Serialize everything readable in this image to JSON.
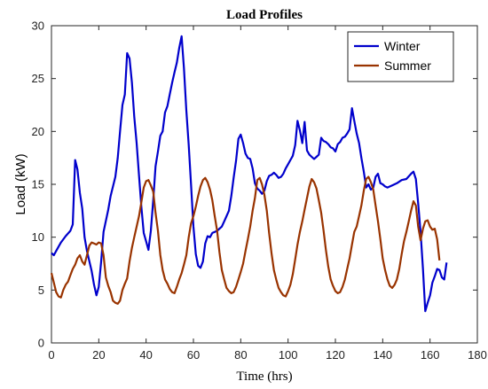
{
  "chart_data": {
    "type": "line",
    "title": "Load Profiles",
    "xlabel": "Time (hrs)",
    "ylabel": "Load (kW)",
    "xlim": [
      0,
      180
    ],
    "ylim": [
      0,
      30
    ],
    "xticks": [
      0,
      20,
      40,
      60,
      80,
      100,
      120,
      140,
      160,
      180
    ],
    "yticks": [
      0,
      5,
      10,
      15,
      20,
      25,
      30
    ],
    "grid": false,
    "legend_position": "top-right",
    "series": [
      {
        "name": "Winter",
        "color": "#0000cc",
        "points": [
          [
            0,
            8.5
          ],
          [
            1,
            8.3
          ],
          [
            2,
            8.7
          ],
          [
            4,
            9.5
          ],
          [
            6,
            10.1
          ],
          [
            8,
            10.6
          ],
          [
            9,
            11.2
          ],
          [
            10,
            17.3
          ],
          [
            11,
            16.4
          ],
          [
            12,
            14.2
          ],
          [
            13,
            12.7
          ],
          [
            14,
            10.0
          ],
          [
            15,
            8.7
          ],
          [
            17,
            6.8
          ],
          [
            18,
            5.5
          ],
          [
            19,
            4.5
          ],
          [
            20,
            5.3
          ],
          [
            21,
            7.7
          ],
          [
            22,
            10.5
          ],
          [
            24,
            12.6
          ],
          [
            25,
            13.9
          ],
          [
            27,
            15.7
          ],
          [
            28,
            17.5
          ],
          [
            29,
            20.0
          ],
          [
            30,
            22.5
          ],
          [
            31,
            23.5
          ],
          [
            32,
            27.4
          ],
          [
            33,
            26.9
          ],
          [
            34,
            24.6
          ],
          [
            35,
            21.4
          ],
          [
            36,
            18.9
          ],
          [
            37,
            15.8
          ],
          [
            38,
            12.9
          ],
          [
            39,
            10.4
          ],
          [
            40,
            9.6
          ],
          [
            41,
            8.8
          ],
          [
            42,
            10.6
          ],
          [
            43,
            13.5
          ],
          [
            44,
            16.7
          ],
          [
            45,
            18.1
          ],
          [
            46,
            19.6
          ],
          [
            47,
            20.0
          ],
          [
            48,
            21.8
          ],
          [
            49,
            22.4
          ],
          [
            50,
            23.5
          ],
          [
            51,
            24.6
          ],
          [
            52,
            25.6
          ],
          [
            53,
            26.5
          ],
          [
            54,
            27.9
          ],
          [
            55,
            29.0
          ],
          [
            56,
            26.0
          ],
          [
            57,
            22.0
          ],
          [
            58,
            18.7
          ],
          [
            59,
            15.0
          ],
          [
            60,
            11.0
          ],
          [
            61,
            8.4
          ],
          [
            62,
            7.3
          ],
          [
            63,
            7.1
          ],
          [
            64,
            7.7
          ],
          [
            65,
            9.4
          ],
          [
            66,
            10.1
          ],
          [
            67,
            10.0
          ],
          [
            68,
            10.4
          ],
          [
            69,
            10.5
          ],
          [
            70,
            10.6
          ],
          [
            72,
            11.0
          ],
          [
            73,
            11.5
          ],
          [
            75,
            12.5
          ],
          [
            76,
            13.9
          ],
          [
            77,
            15.6
          ],
          [
            78,
            17.2
          ],
          [
            79,
            19.3
          ],
          [
            80,
            19.7
          ],
          [
            81,
            18.9
          ],
          [
            82,
            17.9
          ],
          [
            83,
            17.5
          ],
          [
            84,
            17.4
          ],
          [
            85,
            16.5
          ],
          [
            86,
            15.1
          ],
          [
            87,
            14.6
          ],
          [
            88,
            14.4
          ],
          [
            89,
            14.1
          ],
          [
            90,
            14.4
          ],
          [
            91,
            15.3
          ],
          [
            92,
            15.8
          ],
          [
            93,
            15.9
          ],
          [
            94,
            16.1
          ],
          [
            95,
            15.9
          ],
          [
            96,
            15.6
          ],
          [
            97,
            15.7
          ],
          [
            98,
            16.0
          ],
          [
            99,
            16.5
          ],
          [
            100,
            16.9
          ],
          [
            101,
            17.3
          ],
          [
            102,
            17.7
          ],
          [
            103,
            18.7
          ],
          [
            104,
            21.0
          ],
          [
            105,
            20.1
          ],
          [
            106,
            18.9
          ],
          [
            107,
            20.9
          ],
          [
            108,
            18.2
          ],
          [
            109,
            17.8
          ],
          [
            110,
            17.6
          ],
          [
            111,
            17.4
          ],
          [
            112,
            17.6
          ],
          [
            113,
            17.8
          ],
          [
            114,
            19.4
          ],
          [
            115,
            19.1
          ],
          [
            116,
            19.0
          ],
          [
            117,
            18.8
          ],
          [
            118,
            18.5
          ],
          [
            119,
            18.4
          ],
          [
            120,
            18.1
          ],
          [
            121,
            18.8
          ],
          [
            122,
            19.0
          ],
          [
            123,
            19.4
          ],
          [
            124,
            19.5
          ],
          [
            125,
            19.8
          ],
          [
            126,
            20.2
          ],
          [
            127,
            22.2
          ],
          [
            128,
            21.0
          ],
          [
            129,
            19.8
          ],
          [
            130,
            18.9
          ],
          [
            131,
            17.5
          ],
          [
            132,
            16.2
          ],
          [
            133,
            14.7
          ],
          [
            134,
            15.0
          ],
          [
            135,
            14.5
          ],
          [
            136,
            14.7
          ],
          [
            137,
            15.7
          ],
          [
            138,
            16.0
          ],
          [
            139,
            15.1
          ],
          [
            140,
            15.0
          ],
          [
            141,
            14.8
          ],
          [
            142,
            14.7
          ],
          [
            144,
            14.9
          ],
          [
            146,
            15.1
          ],
          [
            148,
            15.4
          ],
          [
            150,
            15.5
          ],
          [
            152,
            16.0
          ],
          [
            153,
            16.2
          ],
          [
            154,
            15.5
          ],
          [
            155,
            13.2
          ],
          [
            156,
            10.5
          ],
          [
            157,
            7.0
          ],
          [
            158,
            3.0
          ],
          [
            159,
            3.8
          ],
          [
            160,
            4.5
          ],
          [
            161,
            5.7
          ],
          [
            162,
            6.3
          ],
          [
            163,
            7.0
          ],
          [
            164,
            6.9
          ],
          [
            165,
            6.2
          ],
          [
            166,
            6.0
          ],
          [
            167,
            7.6
          ]
        ]
      },
      {
        "name": "Summer",
        "color": "#993300",
        "points": [
          [
            0,
            6.6
          ],
          [
            1,
            5.7
          ],
          [
            2,
            4.8
          ],
          [
            3,
            4.4
          ],
          [
            4,
            4.3
          ],
          [
            5,
            5.0
          ],
          [
            6,
            5.5
          ],
          [
            7,
            5.8
          ],
          [
            8,
            6.4
          ],
          [
            9,
            7.0
          ],
          [
            10,
            7.4
          ],
          [
            11,
            8.0
          ],
          [
            12,
            8.3
          ],
          [
            13,
            7.7
          ],
          [
            14,
            7.4
          ],
          [
            15,
            8.3
          ],
          [
            16,
            9.2
          ],
          [
            17,
            9.5
          ],
          [
            18,
            9.4
          ],
          [
            19,
            9.3
          ],
          [
            20,
            9.5
          ],
          [
            21,
            9.4
          ],
          [
            22,
            8.3
          ],
          [
            23,
            6.2
          ],
          [
            24,
            5.4
          ],
          [
            25,
            4.8
          ],
          [
            26,
            4.0
          ],
          [
            27,
            3.8
          ],
          [
            28,
            3.7
          ],
          [
            29,
            4.0
          ],
          [
            30,
            5.0
          ],
          [
            31,
            5.6
          ],
          [
            32,
            6.1
          ],
          [
            33,
            7.7
          ],
          [
            34,
            9.0
          ],
          [
            35,
            10.0
          ],
          [
            36,
            11.0
          ],
          [
            37,
            12.0
          ],
          [
            38,
            13.3
          ],
          [
            39,
            14.7
          ],
          [
            40,
            15.3
          ],
          [
            41,
            15.4
          ],
          [
            42,
            14.9
          ],
          [
            43,
            14.3
          ],
          [
            44,
            12.3
          ],
          [
            45,
            10.6
          ],
          [
            46,
            8.3
          ],
          [
            47,
            6.9
          ],
          [
            48,
            6.0
          ],
          [
            49,
            5.6
          ],
          [
            50,
            5.1
          ],
          [
            51,
            4.8
          ],
          [
            52,
            4.7
          ],
          [
            53,
            5.3
          ],
          [
            54,
            6.0
          ],
          [
            55,
            6.6
          ],
          [
            56,
            7.4
          ],
          [
            57,
            8.3
          ],
          [
            58,
            10.0
          ],
          [
            59,
            11.3
          ],
          [
            60,
            12.0
          ],
          [
            61,
            12.9
          ],
          [
            62,
            13.9
          ],
          [
            63,
            14.8
          ],
          [
            64,
            15.4
          ],
          [
            65,
            15.6
          ],
          [
            66,
            15.2
          ],
          [
            67,
            14.5
          ],
          [
            68,
            13.5
          ],
          [
            69,
            12.0
          ],
          [
            70,
            10.6
          ],
          [
            71,
            8.6
          ],
          [
            72,
            6.9
          ],
          [
            73,
            6.0
          ],
          [
            74,
            5.2
          ],
          [
            75,
            4.9
          ],
          [
            76,
            4.7
          ],
          [
            77,
            4.8
          ],
          [
            78,
            5.3
          ],
          [
            79,
            6.0
          ],
          [
            80,
            6.7
          ],
          [
            81,
            7.5
          ],
          [
            82,
            8.7
          ],
          [
            83,
            9.8
          ],
          [
            84,
            11.0
          ],
          [
            85,
            12.5
          ],
          [
            86,
            13.7
          ],
          [
            87,
            15.4
          ],
          [
            88,
            15.6
          ],
          [
            89,
            15.0
          ],
          [
            90,
            14.0
          ],
          [
            91,
            12.5
          ],
          [
            92,
            10.4
          ],
          [
            93,
            8.5
          ],
          [
            94,
            6.9
          ],
          [
            95,
            6.0
          ],
          [
            96,
            5.2
          ],
          [
            97,
            4.8
          ],
          [
            98,
            4.5
          ],
          [
            99,
            4.4
          ],
          [
            100,
            4.9
          ],
          [
            101,
            5.5
          ],
          [
            102,
            6.5
          ],
          [
            103,
            7.9
          ],
          [
            104,
            9.3
          ],
          [
            105,
            10.5
          ],
          [
            106,
            11.5
          ],
          [
            107,
            12.6
          ],
          [
            108,
            13.7
          ],
          [
            109,
            14.8
          ],
          [
            110,
            15.5
          ],
          [
            111,
            15.2
          ],
          [
            112,
            14.6
          ],
          [
            113,
            13.5
          ],
          [
            114,
            12.3
          ],
          [
            115,
            10.6
          ],
          [
            116,
            8.8
          ],
          [
            117,
            7.2
          ],
          [
            118,
            6.0
          ],
          [
            119,
            5.4
          ],
          [
            120,
            4.9
          ],
          [
            121,
            4.7
          ],
          [
            122,
            4.8
          ],
          [
            123,
            5.3
          ],
          [
            124,
            6.0
          ],
          [
            125,
            7.0
          ],
          [
            126,
            8.0
          ],
          [
            127,
            9.3
          ],
          [
            128,
            10.5
          ],
          [
            129,
            11.0
          ],
          [
            130,
            12.0
          ],
          [
            131,
            13.0
          ],
          [
            132,
            14.4
          ],
          [
            133,
            15.5
          ],
          [
            134,
            15.7
          ],
          [
            135,
            15.2
          ],
          [
            136,
            14.5
          ],
          [
            137,
            13.0
          ],
          [
            138,
            11.5
          ],
          [
            139,
            9.8
          ],
          [
            140,
            8.0
          ],
          [
            141,
            6.9
          ],
          [
            142,
            6.0
          ],
          [
            143,
            5.4
          ],
          [
            144,
            5.2
          ],
          [
            145,
            5.5
          ],
          [
            146,
            6.0
          ],
          [
            147,
            7.0
          ],
          [
            148,
            8.4
          ],
          [
            149,
            9.6
          ],
          [
            150,
            10.5
          ],
          [
            151,
            11.5
          ],
          [
            152,
            12.5
          ],
          [
            153,
            13.4
          ],
          [
            154,
            13.0
          ],
          [
            155,
            11.0
          ],
          [
            156,
            9.7
          ],
          [
            157,
            10.8
          ],
          [
            158,
            11.5
          ],
          [
            159,
            11.6
          ],
          [
            160,
            11.0
          ],
          [
            161,
            10.7
          ],
          [
            162,
            10.8
          ],
          [
            163,
            9.8
          ],
          [
            164,
            7.8
          ]
        ]
      }
    ]
  }
}
